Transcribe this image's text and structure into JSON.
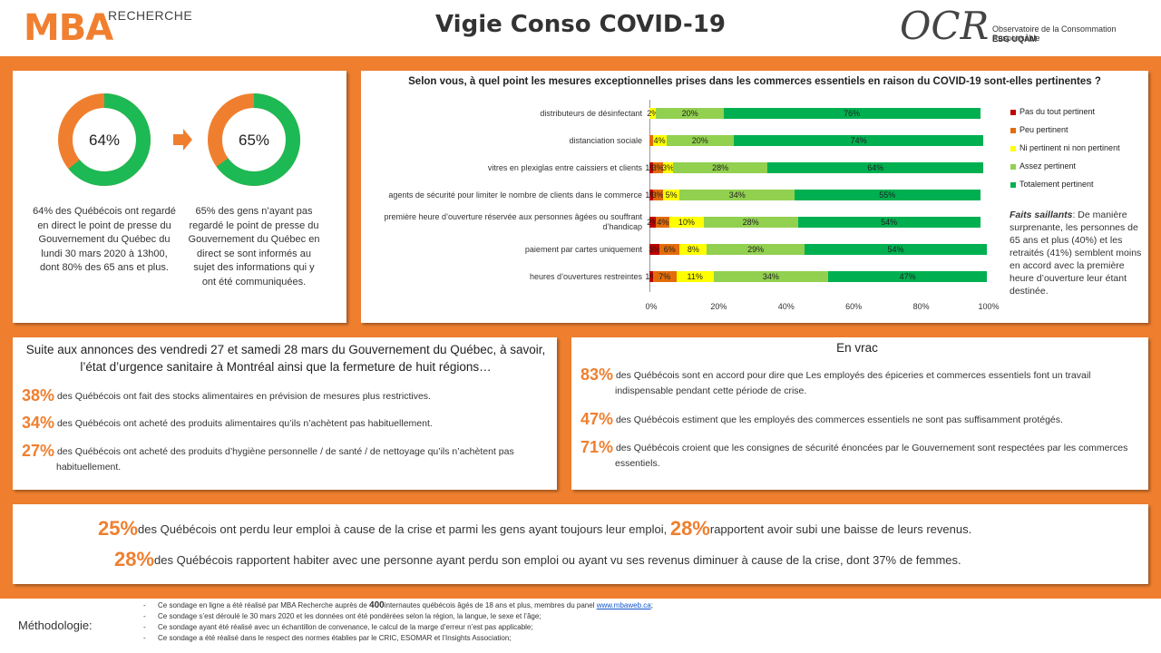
{
  "header": {
    "mba_logo": "MBA",
    "mba_sub": "RECHERCHE",
    "title": "Vigie Conso COVID-19",
    "ocr_logo": "OCR",
    "ocr_line1": "Observatoire de la Consommation Responsable",
    "ocr_line2": "ESG UQÀM"
  },
  "donuts": [
    {
      "pct_label": "64%",
      "value": 64,
      "caption": "64% des Québécois ont regardé en direct le point de presse du Gouvernement du Québec du lundi 30 mars 2020 à 13h00, dont 80% des 65 ans et plus."
    },
    {
      "pct_label": "65%",
      "value": 65,
      "caption": "65% des gens n’ayant pas regardé le point de presse du Gouvernement du Québec en direct se sont informés au sujet des informations qui y ont été communiquées."
    }
  ],
  "colors": {
    "orange": "#ef7f2f",
    "green": "#1db954",
    "dark_green": "#00b050",
    "light_green": "#92d050",
    "yellow": "#ffff00",
    "red": "#c00000",
    "orange_seg": "#e36c0a"
  },
  "chart_data": {
    "type": "bar",
    "orientation": "horizontal-stacked-100",
    "title": "Selon vous, à quel point les mesures exceptionnelles prises dans les commerces essentiels en raison du COVID-19 sont-elles pertinentes ?",
    "categories": [
      "distributeurs de désinfectant",
      "distanciation sociale",
      "vitres en plexiglas entre caissiers et clients",
      "agents de sécurité pour limiter le nombre de clients dans le commerce",
      "première heure d’ouverture réservée aux personnes âgées ou souffrant d’handicap",
      "paiement par cartes uniquement",
      "heures d’ouvertures restreintes"
    ],
    "series": [
      {
        "name": "Pas du tout pertinent",
        "color": "#c00000",
        "values": [
          0,
          0,
          1,
          1,
          2,
          3,
          1
        ],
        "labels": [
          "",
          "",
          "1%",
          "1%",
          "2%",
          "3%",
          "1%"
        ]
      },
      {
        "name": "Peu pertinent",
        "color": "#e36c0a",
        "values": [
          0,
          1,
          3,
          3,
          4,
          6,
          7
        ],
        "labels": [
          "",
          "",
          "3%",
          "3%",
          "4%",
          "6%",
          "7%"
        ]
      },
      {
        "name": "Ni pertinent ni non pertinent",
        "color": "#ffff00",
        "values": [
          2,
          4,
          3,
          5,
          10,
          8,
          11
        ],
        "labels": [
          "2%",
          "4%",
          "3%",
          "5%",
          "10%",
          "8%",
          "11%"
        ]
      },
      {
        "name": "Assez pertinent",
        "color": "#92d050",
        "values": [
          20,
          20,
          28,
          34,
          28,
          29,
          34
        ],
        "labels": [
          "20%",
          "20%",
          "28%",
          "34%",
          "28%",
          "29%",
          "34%"
        ]
      },
      {
        "name": "Totalement pertinent",
        "color": "#00b050",
        "values": [
          76,
          74,
          64,
          55,
          54,
          54,
          47
        ],
        "labels": [
          "76%",
          "74%",
          "64%",
          "55%",
          "54%",
          "54%",
          "47%"
        ]
      }
    ],
    "xlim": [
      0,
      100
    ],
    "xticks": [
      "0%",
      "20%",
      "40%",
      "60%",
      "80%",
      "100%"
    ],
    "legend": "right"
  },
  "faits": {
    "label": "Faits saillants",
    "text": ": De manière surprenante, les personnes de 65 ans et plus (40%) et les retraités (41%) semblent moins en accord avec la première heure d’ouverture leur étant destinée."
  },
  "annonces": {
    "title": "Suite aux annonces des vendredi 27 et samedi 28 mars du Gouvernement du Québec, à savoir, l’état d’urgence sanitaire à Montréal ainsi que la fermeture de huit régions…",
    "items": [
      {
        "pct": "38%",
        "text": "des Québécois ont fait des stocks alimentaires en prévision de mesures plus restrictives."
      },
      {
        "pct": "34%",
        "text": "des Québécois ont acheté des produits alimentaires qu’ils n’achètent pas habituellement."
      },
      {
        "pct": "27%",
        "text": "des Québécois ont acheté des produits d’hygiène personnelle / de santé / de nettoyage qu’ils n’achètent pas habituellement."
      }
    ]
  },
  "vrac": {
    "title": "En vrac",
    "items": [
      {
        "pct": "83%",
        "text": "des Québécois sont en accord pour dire que Les employés des épiceries et commerces essentiels font un travail indispensable pendant cette période de crise."
      },
      {
        "pct": "47%",
        "text": "des Québécois estiment que les employés des commerces essentiels ne sont pas suffisamment protégés."
      },
      {
        "pct": "71%",
        "text": "des Québécois croient que les consignes de sécurité énoncées par le Gouvernement sont respectées par les commerces essentiels."
      }
    ]
  },
  "emploi": {
    "pct1": "25%",
    "text1": "des Québécois ont perdu leur emploi à cause de la crise et parmi les gens ayant toujours leur emploi,",
    "pct2": "28%",
    "text2": "rapportent avoir subi une baisse de leurs revenus.",
    "pct3": "28%",
    "text3": "des Québécois rapportent habiter avec une personne ayant perdu son emploi ou ayant vu ses revenus diminuer à cause de la crise, dont 37% de femmes."
  },
  "methodologie": {
    "label": "Méthodologie:",
    "line1_a": "Ce sondage en ligne a été réalisé par MBA Recherche auprès de",
    "line1_b": "400",
    "line1_c": "internautes québécois âgés de 18 ans et plus, membres du panel",
    "line1_link": "www.mbaweb.ca",
    "line1_d": ";",
    "line2": "Ce sondage s’est déroulé le 30 mars 2020 et les données ont été pondérées selon la région, la langue, le sexe et l’âge;",
    "line3": "Ce sondage ayant été réalisé avec un échantillon de convenance, le calcul de la marge d’erreur n’est pas applicable;",
    "line4": "Ce sondage a été réalisé dans le respect des normes établies par le CRIC, ESOMAR et l’Insights Association;"
  }
}
